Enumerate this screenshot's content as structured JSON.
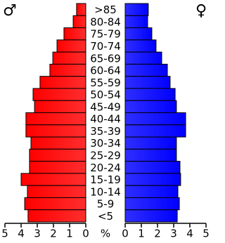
{
  "chart_data": {
    "type": "pyramid",
    "categories": [
      ">85",
      "80-84",
      "75-79",
      "70-74",
      "65-69",
      "60-64",
      "55-59",
      "50-54",
      "45-49",
      "40-44",
      "35-39",
      "30-34",
      "25-29",
      "20-24",
      "15-19",
      "10-14",
      "5-9",
      "<5"
    ],
    "series": [
      {
        "name": "♂",
        "color": "#ff0000",
        "values": [
          0.57,
          0.78,
          1.35,
          1.78,
          2.04,
          2.22,
          2.83,
          3.26,
          3.17,
          3.7,
          3.7,
          3.39,
          3.48,
          3.48,
          4.0,
          3.61,
          3.78,
          3.57
        ]
      },
      {
        "name": "♀",
        "color": "#0000ff",
        "values": [
          1.43,
          1.39,
          1.65,
          1.91,
          2.26,
          2.61,
          2.78,
          3.09,
          3.17,
          3.74,
          3.74,
          3.17,
          3.17,
          3.39,
          3.43,
          3.26,
          3.35,
          3.22
        ]
      }
    ],
    "x_label": "%",
    "xlim": [
      0,
      5
    ],
    "xticks": [
      0,
      1,
      2,
      3,
      4,
      5
    ]
  }
}
